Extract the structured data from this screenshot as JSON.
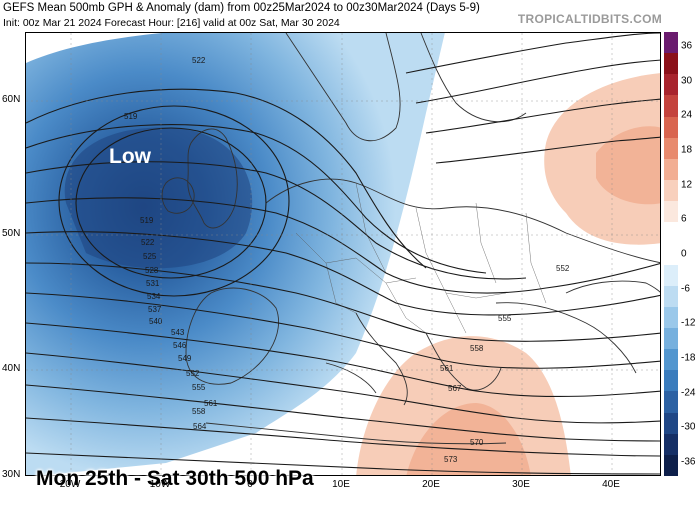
{
  "header": {
    "title": "GEFS Mean 500mb GPH & Anomaly (dam) from 00z25Mar2024 to 00z30Mar2024 (Days 5-9)",
    "subtitle": "Init: 00z Mar 21 2024   Forecast Hour: [216]   valid at 00z Sat, Mar 30 2024",
    "brand": "TROPICALTIDBITS.COM"
  },
  "map": {
    "low_label": "Low",
    "caption": "Mon 25th - Sat 30th 500 hPa",
    "lat_labels": [
      "60N",
      "50N",
      "40N",
      "30N"
    ],
    "lon_labels": [
      "20W",
      "10W",
      "0",
      "10E",
      "20E",
      "30E",
      "40E"
    ],
    "contour_labels": [
      "522",
      "519",
      "519",
      "522",
      "525",
      "528",
      "531",
      "534",
      "537",
      "540",
      "543",
      "546",
      "549",
      "552",
      "555",
      "558",
      "561",
      "564",
      "567",
      "570",
      "573",
      "552",
      "555",
      "558",
      "561"
    ]
  },
  "colorbar": {
    "ticks": [
      "36",
      "30",
      "24",
      "18",
      "12",
      "6",
      "0",
      "-6",
      "-12",
      "-18",
      "-24",
      "-30",
      "-36"
    ],
    "colors": [
      "#6a1b6e",
      "#8b1019",
      "#a8242d",
      "#c4433d",
      "#d9654f",
      "#e88a6d",
      "#f2ae93",
      "#f8d0bd",
      "#fbe8de",
      "#ffffff",
      "#ffffff",
      "#dceefa",
      "#bddcf2",
      "#9ac8ea",
      "#76b0de",
      "#5296cf",
      "#3a7cbd",
      "#2c61a3",
      "#1f4786",
      "#152f66",
      "#0d1f4a"
    ]
  }
}
